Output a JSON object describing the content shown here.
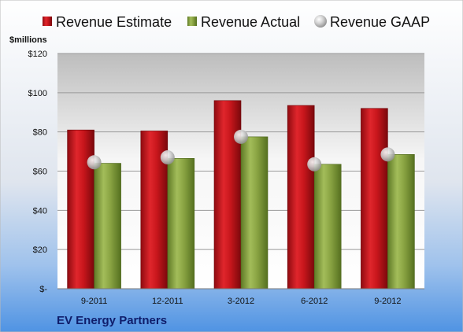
{
  "colors": {
    "estimate": "#c8161c",
    "actual": "#8aa443",
    "gaap": "#c9c9c9",
    "company_text": "#0f1d6b"
  },
  "chart_data": {
    "type": "bar",
    "title": "",
    "company": "EV Energy Partners",
    "unit_label": "$millions",
    "xlabel": "",
    "ylabel": "",
    "categories": [
      "9-2011",
      "12-2011",
      "3-2012",
      "6-2012",
      "9-2012"
    ],
    "series": [
      {
        "name": "Revenue Estimate",
        "type": "bar",
        "values": [
          81,
          80.5,
          96,
          93.5,
          92
        ]
      },
      {
        "name": "Revenue Actual",
        "type": "bar",
        "values": [
          64,
          66.5,
          77.5,
          63.5,
          68.5
        ]
      },
      {
        "name": "Revenue GAAP",
        "type": "scatter",
        "values": [
          64.5,
          67,
          77.5,
          63.5,
          68.5
        ]
      }
    ],
    "ylim": [
      0,
      120
    ],
    "yticks": [
      0,
      20,
      40,
      60,
      80,
      100,
      120
    ],
    "ytick_labels": [
      "$-",
      "$20",
      "$40",
      "$60",
      "$80",
      "$100",
      "$120"
    ],
    "grid": true,
    "legend_position": "top"
  }
}
